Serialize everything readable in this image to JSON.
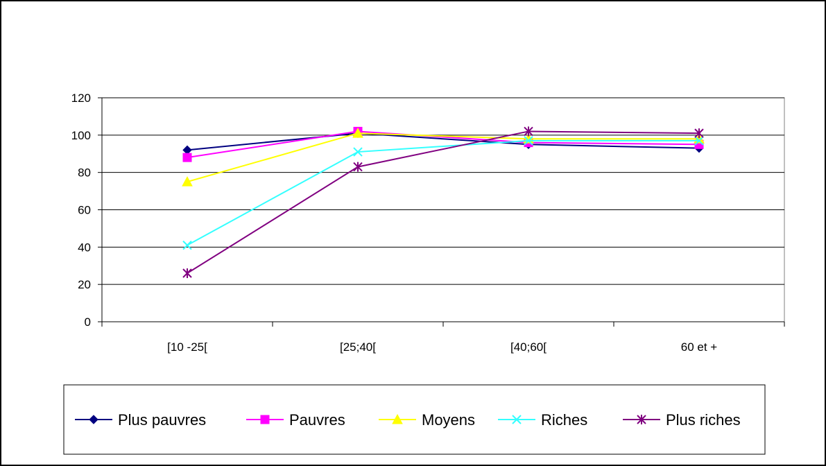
{
  "chart_data": {
    "type": "line",
    "title": "",
    "xlabel": "",
    "ylabel": "",
    "categories": [
      "[10 -25[",
      "[25;40[",
      "[40;60[",
      "60 et +"
    ],
    "ylim": [
      0,
      120
    ],
    "yticks": [
      0,
      20,
      40,
      60,
      80,
      100,
      120
    ],
    "grid": true,
    "legend": "bottom",
    "series": [
      {
        "name": "Plus pauvres",
        "values": [
          92,
          101,
          95,
          93
        ],
        "color": "#000080",
        "marker": "diamond"
      },
      {
        "name": "Pauvres",
        "values": [
          88,
          102,
          96,
          95
        ],
        "color": "#FF00FF",
        "marker": "square"
      },
      {
        "name": "Moyens",
        "values": [
          75,
          101,
          98,
          98
        ],
        "color": "#FFFF00",
        "marker": "triangle"
      },
      {
        "name": "Riches",
        "values": [
          41,
          91,
          97,
          97
        ],
        "color": "#33FFFF",
        "marker": "x"
      },
      {
        "name": "Plus riches",
        "values": [
          26,
          83,
          102,
          101
        ],
        "color": "#800080",
        "marker": "star"
      }
    ]
  }
}
